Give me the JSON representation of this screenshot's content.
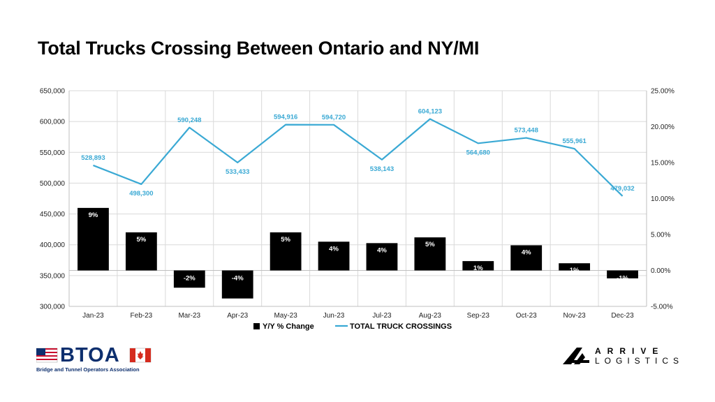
{
  "title": "Total Trucks Crossing Between Ontario and NY/MI",
  "chart_data": {
    "type": "bar+line",
    "categories": [
      "Jan-23",
      "Feb-23",
      "Mar-23",
      "Apr-23",
      "May-23",
      "Jun-23",
      "Jul-23",
      "Aug-23",
      "Sep-23",
      "Oct-23",
      "Nov-23",
      "Dec-23"
    ],
    "series": [
      {
        "name": "Y/Y % Change",
        "type": "bar",
        "axis": "right",
        "values": [
          8.7,
          5.3,
          -2.4,
          -3.9,
          5.3,
          4.0,
          3.8,
          4.6,
          1.3,
          3.5,
          1.0,
          -1.1
        ],
        "labels": [
          "9%",
          "5%",
          "-2%",
          "-4%",
          "5%",
          "4%",
          "4%",
          "5%",
          "1%",
          "4%",
          "1%",
          "-1%"
        ],
        "color": "#000000"
      },
      {
        "name": "TOTAL TRUCK CROSSINGS",
        "type": "line",
        "axis": "left",
        "values": [
          528893,
          498300,
          590248,
          533433,
          594916,
          594720,
          538143,
          604123,
          564680,
          573448,
          555961,
          479032
        ],
        "labels": [
          "528,893",
          "498,300",
          "590,248",
          "533,433",
          "594,916",
          "594,720",
          "538,143",
          "604,123",
          "564,680",
          "573,448",
          "555,961",
          "479,032"
        ],
        "color": "#3aa9d4"
      }
    ],
    "y_left": {
      "min": 300000,
      "max": 650000,
      "ticks": [
        "300,000",
        "350,000",
        "400,000",
        "450,000",
        "500,000",
        "550,000",
        "600,000",
        "650,000"
      ]
    },
    "y_right": {
      "min": -5,
      "max": 25,
      "ticks": [
        "-5.00%",
        "0.00%",
        "5.00%",
        "10.00%",
        "15.00%",
        "20.00%",
        "25.00%"
      ]
    },
    "grid": true,
    "legend_position": "bottom"
  },
  "logos": {
    "btoa": {
      "text": "BTOA",
      "subtitle": "Bridge and Tunnel Operators Association"
    },
    "arrive": {
      "line1": "ARRIVE",
      "line2": "LOGISTICS"
    }
  }
}
